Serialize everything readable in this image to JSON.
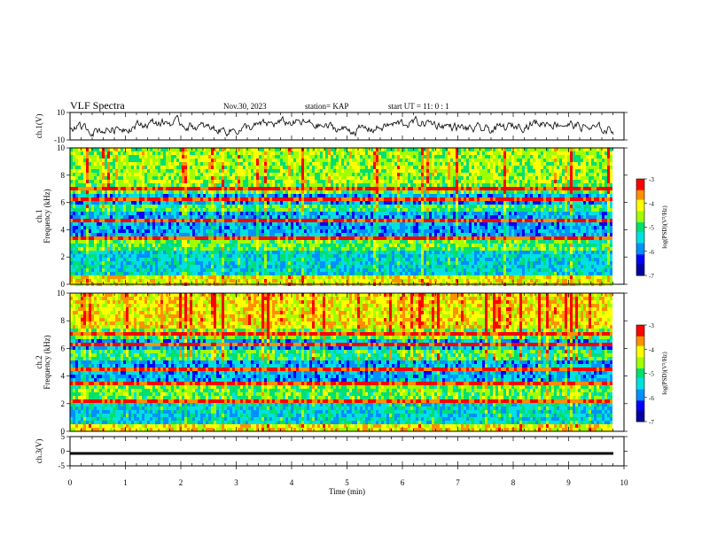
{
  "header": {
    "title": "VLF Spectra",
    "date": "Nov.30, 2023",
    "station": "station= KAP",
    "start": "start  UT =   11: 0  : 1"
  },
  "colors": {
    "waveform": "#000000",
    "scale": [
      "#0000a0",
      "#0000ff",
      "#0090ff",
      "#00e0e0",
      "#00e070",
      "#a0ff00",
      "#ffff00",
      "#ff9000",
      "#ff0000",
      "#ffffff"
    ]
  },
  "chart_data": [
    {
      "type": "line",
      "panel": "ch1-waveform",
      "ylabel": "ch.1(V)",
      "ylim": [
        -10,
        10
      ],
      "y_tick_labels": [
        "10",
        "-10"
      ],
      "xlim": [
        0,
        10
      ]
    },
    {
      "type": "heatmap",
      "panel": "ch1-spectrogram",
      "ylabel": "ch.1\nFrequency (kHz)",
      "ylim": [
        0,
        10
      ],
      "y_tick_labels": [
        "0",
        "2",
        "4",
        "6",
        "8",
        "10"
      ],
      "xlim": [
        0,
        10
      ],
      "colorbar": {
        "label": "log(PSD)(V²/Hz)",
        "range": [
          -7,
          -3
        ],
        "tick_labels": [
          "-3",
          "-4",
          "-5",
          "-6",
          "-7"
        ]
      }
    },
    {
      "type": "heatmap",
      "panel": "ch2-spectrogram",
      "ylabel": "ch.2\nFrequency (kHz)",
      "ylim": [
        0,
        10
      ],
      "y_tick_labels": [
        "0",
        "2",
        "4",
        "6",
        "8",
        "10"
      ],
      "xlim": [
        0,
        10
      ],
      "colorbar": {
        "label": "log(PSD)(V²/Hz)",
        "range": [
          -7,
          -3
        ],
        "tick_labels": [
          "-3",
          "-4",
          "-5",
          "-6",
          "-7"
        ]
      }
    },
    {
      "type": "line",
      "panel": "ch3-waveform",
      "ylabel": "ch.3(V)",
      "ylim": [
        -5,
        5
      ],
      "y_tick_labels": [
        "5",
        "0",
        "-5"
      ],
      "xlim": [
        0,
        10
      ],
      "x_tick_labels": [
        "0",
        "1",
        "2",
        "3",
        "4",
        "5",
        "6",
        "7",
        "8",
        "9",
        "10"
      ],
      "xlabel": "Time  (min)"
    }
  ]
}
